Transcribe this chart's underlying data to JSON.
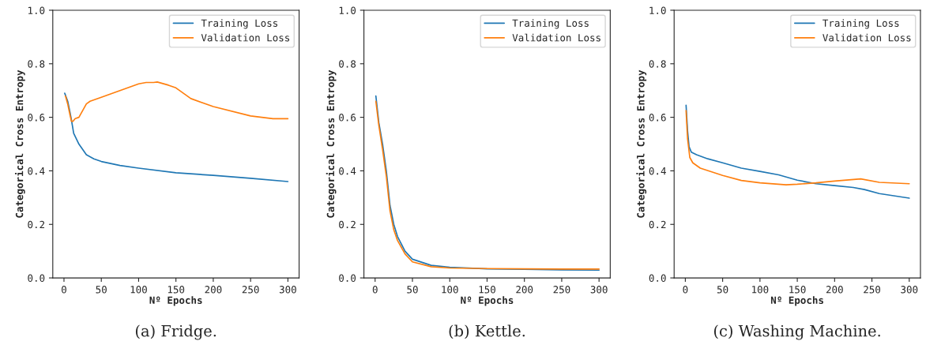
{
  "chart_data": [
    {
      "type": "line",
      "xlabel": "Nº Epochs",
      "ylabel": "Categorical Cross Entropy",
      "annotations": [
        "(a) Fridge."
      ],
      "legend": "top right",
      "grid": false,
      "xlim": [
        -15,
        315
      ],
      "ylim": [
        0,
        1
      ],
      "xticks": [
        0,
        50,
        100,
        150,
        200,
        250,
        300
      ],
      "yticks": [
        {
          "value": 0,
          "label": "0.0"
        },
        {
          "value": 0.2,
          "label": "0.2"
        },
        {
          "value": 0.4,
          "label": "0.4"
        },
        {
          "value": 0.6,
          "label": "0.6"
        },
        {
          "value": 0.8,
          "label": "0.8"
        },
        {
          "value": 1,
          "label": "1.0"
        }
      ],
      "series": [
        {
          "name": "Training Loss",
          "color": "#1f77b4",
          "x": [
            1,
            5,
            8,
            10,
            13,
            20,
            30,
            40,
            50,
            75,
            100,
            150,
            200,
            250,
            300
          ],
          "values": [
            0.69,
            0.66,
            0.62,
            0.59,
            0.54,
            0.5,
            0.46,
            0.445,
            0.435,
            0.42,
            0.41,
            0.393,
            0.383,
            0.372,
            0.36
          ]
        },
        {
          "name": "Validation Loss",
          "color": "#ff7f0e",
          "x": [
            2,
            5,
            8,
            10,
            12,
            15,
            20,
            25,
            30,
            35,
            50,
            75,
            100,
            110,
            120,
            125,
            140,
            150,
            170,
            200,
            250,
            280,
            300
          ],
          "values": [
            0.68,
            0.65,
            0.61,
            0.585,
            0.585,
            0.595,
            0.6,
            0.625,
            0.65,
            0.66,
            0.675,
            0.7,
            0.725,
            0.73,
            0.73,
            0.732,
            0.72,
            0.71,
            0.67,
            0.64,
            0.605,
            0.595,
            0.595
          ]
        }
      ]
    },
    {
      "type": "line",
      "xlabel": "Nº Epochs",
      "ylabel": "Categorical Cross Entropy",
      "annotations": [
        "(b) Kettle."
      ],
      "legend": "top right",
      "grid": false,
      "xlim": [
        -15,
        315
      ],
      "ylim": [
        0,
        1
      ],
      "xticks": [
        0,
        50,
        100,
        150,
        200,
        250,
        300
      ],
      "yticks": [
        {
          "value": 0,
          "label": "0.0"
        },
        {
          "value": 0.2,
          "label": "0.2"
        },
        {
          "value": 0.4,
          "label": "0.4"
        },
        {
          "value": 0.6,
          "label": "0.6"
        },
        {
          "value": 0.8,
          "label": "0.8"
        },
        {
          "value": 1,
          "label": "1.0"
        }
      ],
      "series": [
        {
          "name": "Training Loss",
          "color": "#1f77b4",
          "x": [
            1,
            5,
            10,
            15,
            20,
            25,
            30,
            40,
            50,
            75,
            100,
            150,
            200,
            250,
            300
          ],
          "values": [
            0.68,
            0.58,
            0.5,
            0.4,
            0.27,
            0.2,
            0.155,
            0.1,
            0.07,
            0.047,
            0.04,
            0.034,
            0.032,
            0.03,
            0.029
          ]
        },
        {
          "name": "Validation Loss",
          "color": "#ff7f0e",
          "x": [
            1,
            5,
            10,
            15,
            20,
            25,
            30,
            40,
            50,
            75,
            100,
            150,
            200,
            250,
            300
          ],
          "values": [
            0.66,
            0.57,
            0.48,
            0.38,
            0.25,
            0.18,
            0.14,
            0.09,
            0.06,
            0.042,
            0.037,
            0.035,
            0.034,
            0.033,
            0.033
          ]
        }
      ]
    },
    {
      "type": "line",
      "xlabel": "Nº Epochs",
      "ylabel": "Categorical Cross Entropy",
      "annotations": [
        "(c) Washing Machine."
      ],
      "legend": "top right",
      "grid": false,
      "xlim": [
        -15,
        315
      ],
      "ylim": [
        0,
        1
      ],
      "xticks": [
        0,
        50,
        100,
        150,
        200,
        250,
        300
      ],
      "yticks": [
        {
          "value": 0,
          "label": "0.0"
        },
        {
          "value": 0.2,
          "label": "0.2"
        },
        {
          "value": 0.4,
          "label": "0.4"
        },
        {
          "value": 0.6,
          "label": "0.6"
        },
        {
          "value": 0.8,
          "label": "0.8"
        },
        {
          "value": 1,
          "label": "1.0"
        }
      ],
      "series": [
        {
          "name": "Training Loss",
          "color": "#1f77b4",
          "x": [
            1,
            3,
            5,
            8,
            15,
            30,
            50,
            75,
            100,
            125,
            150,
            175,
            200,
            225,
            240,
            260,
            300
          ],
          "values": [
            0.645,
            0.55,
            0.49,
            0.47,
            0.46,
            0.445,
            0.43,
            0.41,
            0.398,
            0.385,
            0.365,
            0.352,
            0.345,
            0.338,
            0.33,
            0.315,
            0.298
          ]
        },
        {
          "name": "Validation Loss",
          "color": "#ff7f0e",
          "x": [
            1,
            3,
            6,
            10,
            20,
            50,
            75,
            100,
            135,
            150,
            175,
            200,
            235,
            260,
            300
          ],
          "values": [
            0.625,
            0.52,
            0.45,
            0.43,
            0.41,
            0.383,
            0.364,
            0.355,
            0.348,
            0.35,
            0.355,
            0.362,
            0.37,
            0.357,
            0.352
          ]
        }
      ]
    }
  ]
}
